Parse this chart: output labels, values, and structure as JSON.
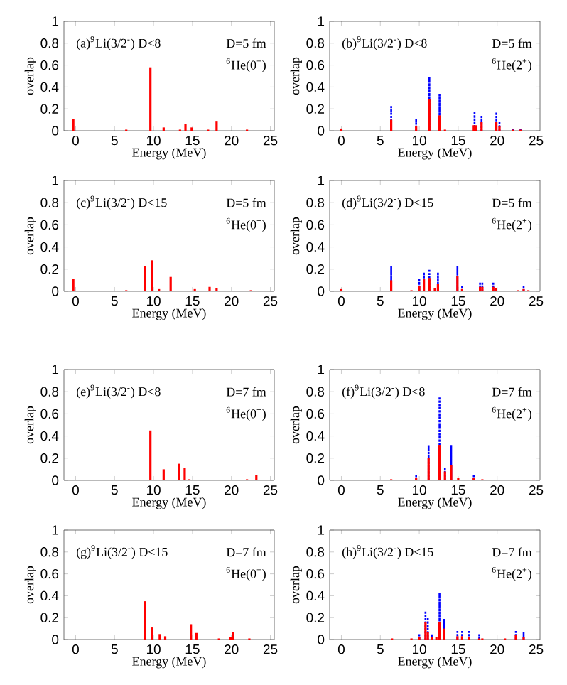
{
  "chart_data": [
    {
      "type": "bar",
      "xlabel": "Energy (MeV)",
      "ylabel": "overlap",
      "annotations": [
        "(a)$^{9}$Li(3/2$^{-}$) D<8",
        "D=5 fm",
        "$^{6}$He(0$^{+}$)"
      ],
      "xlim": [
        -1.5,
        25.5
      ],
      "ylim": [
        0,
        1
      ],
      "xticks": [
        0,
        5,
        10,
        15,
        20,
        25
      ],
      "yticks": [
        0,
        0.2,
        0.4,
        0.6,
        0.8,
        1
      ],
      "series": [
        {
          "color": "#ff0000",
          "x": [
            -0.3,
            6.5,
            9.6,
            11.3,
            13.4,
            14.1,
            14.9,
            17,
            18.1,
            22
          ],
          "values": [
            0.11,
            0.01,
            0.58,
            0.03,
            0.01,
            0.06,
            0.03,
            0.01,
            0.09,
            0.01
          ]
        }
      ]
    },
    {
      "type": "bar",
      "xlabel": "Energy (MeV)",
      "ylabel": "overlap",
      "annotations": [
        "(b)$^{9}$Li(3/2$^{-}$) D<8",
        "D=5 fm",
        "$^{6}$He(2$^{+}$)"
      ],
      "xlim": [
        -1.5,
        25.5
      ],
      "ylim": [
        0,
        1
      ],
      "xticks": [
        0,
        5,
        10,
        15,
        20,
        25
      ],
      "yticks": [
        0,
        0.2,
        0.4,
        0.6,
        0.8,
        1
      ],
      "series": [
        {
          "color": "#0000ff",
          "line_style": "dotted",
          "x": [
            6.4,
            9.6,
            11.3,
            12.6,
            17.1,
            18,
            19.9,
            20.3,
            22,
            23
          ],
          "values": [
            0.23,
            0.11,
            0.48,
            0.33,
            0.16,
            0.14,
            0.17,
            0.07,
            0.01,
            0.01
          ]
        },
        {
          "color": "#ff0000",
          "x": [
            0,
            6.4,
            9.6,
            11.3,
            12.6,
            13.3,
            17,
            17.3,
            18,
            19.9,
            20.3,
            22,
            23
          ],
          "values": [
            0.02,
            0.1,
            0.04,
            0.29,
            0.14,
            0.01,
            0.05,
            0.05,
            0.08,
            0.08,
            0.04,
            0.01,
            0.01
          ]
        }
      ]
    },
    {
      "type": "bar",
      "xlabel": "Energy (MeV)",
      "ylabel": "overlap",
      "annotations": [
        "(c)$^{9}$Li(3/2$^{-}$) D<15",
        "D=5 fm",
        "$^{6}$He(0$^{+}$)"
      ],
      "xlim": [
        -1.5,
        25.5
      ],
      "ylim": [
        0,
        1
      ],
      "xticks": [
        0,
        5,
        10,
        15,
        20,
        25
      ],
      "yticks": [
        0,
        0.2,
        0.4,
        0.6,
        0.8,
        1
      ],
      "series": [
        {
          "color": "#ff0000",
          "x": [
            -0.3,
            6.5,
            8.9,
            9.8,
            10.7,
            12.2,
            15.3,
            17.2,
            18.1,
            22.5
          ],
          "values": [
            0.11,
            0.01,
            0.23,
            0.28,
            0.02,
            0.13,
            0.02,
            0.04,
            0.03,
            0.01
          ]
        }
      ]
    },
    {
      "type": "bar",
      "xlabel": "Energy (MeV)",
      "ylabel": "overlap",
      "annotations": [
        "(d)$^{9}$Li(3/2$^{-}$) D<15",
        "D=5 fm",
        "$^{6}$He(2$^{+}$)"
      ],
      "xlim": [
        -1.5,
        25.5
      ],
      "ylim": [
        0,
        1
      ],
      "xticks": [
        0,
        5,
        10,
        15,
        20,
        25
      ],
      "yticks": [
        0,
        0.2,
        0.4,
        0.6,
        0.8,
        1
      ],
      "series": [
        {
          "color": "#0000ff",
          "line_style": "dotted",
          "x": [
            6.4,
            10,
            10.6,
            11.3,
            12.4,
            14.9,
            15.5,
            17.8,
            18.1,
            19.5,
            23.4
          ],
          "values": [
            0.22,
            0.1,
            0.16,
            0.2,
            0.16,
            0.22,
            0.04,
            0.07,
            0.07,
            0.07,
            0.04
          ]
        },
        {
          "color": "#ff0000",
          "x": [
            0,
            6.4,
            9,
            10,
            10.6,
            11.3,
            12,
            12.4,
            14.9,
            15.5,
            17.8,
            18.1,
            19.5,
            19.8,
            22.7,
            23.4,
            24
          ],
          "values": [
            0.02,
            0.1,
            0.01,
            0.05,
            0.11,
            0.12,
            0.03,
            0.07,
            0.14,
            0.02,
            0.04,
            0.04,
            0.04,
            0.03,
            0.01,
            0.02,
            0.01
          ]
        }
      ]
    },
    {
      "type": "bar",
      "xlabel": "Energy (MeV)",
      "ylabel": "overlap",
      "annotations": [
        "(e)$^{9}$Li(3/2$^{-}$) D<8",
        "D=7 fm",
        "$^{6}$He(0$^{+}$)"
      ],
      "xlim": [
        -1.5,
        25.5
      ],
      "ylim": [
        0,
        1
      ],
      "xticks": [
        0,
        5,
        10,
        15,
        20,
        25
      ],
      "yticks": [
        0,
        0.2,
        0.4,
        0.6,
        0.8,
        1
      ],
      "series": [
        {
          "color": "#ff0000",
          "x": [
            9.6,
            11.3,
            13.3,
            14,
            14.6,
            22,
            23.2
          ],
          "values": [
            0.45,
            0.1,
            0.15,
            0.11,
            0.01,
            0.01,
            0.05
          ]
        }
      ]
    },
    {
      "type": "bar",
      "xlabel": "Energy (MeV)",
      "ylabel": "overlap",
      "annotations": [
        "(f)$^{9}$Li(3/2$^{-}$) D<8",
        "D=7 fm",
        "$^{6}$He(2$^{+}$)"
      ],
      "xlim": [
        -1.5,
        25.5
      ],
      "ylim": [
        0,
        1
      ],
      "xticks": [
        0,
        5,
        10,
        15,
        20,
        25
      ],
      "yticks": [
        0,
        0.2,
        0.4,
        0.6,
        0.8,
        1
      ],
      "series": [
        {
          "color": "#0000ff",
          "line_style": "dotted",
          "x": [
            9.6,
            11.2,
            12.6,
            13.3,
            14.1,
            17
          ],
          "values": [
            0.04,
            0.32,
            0.74,
            0.1,
            0.31,
            0.04
          ]
        },
        {
          "color": "#ff0000",
          "x": [
            6.4,
            9.6,
            11.2,
            12.6,
            13.3,
            14.1,
            15,
            17,
            18.1
          ],
          "values": [
            0.01,
            0.02,
            0.2,
            0.32,
            0.08,
            0.14,
            0.02,
            0.02,
            0.01
          ]
        }
      ]
    },
    {
      "type": "bar",
      "xlabel": "Energy (MeV)",
      "ylabel": "overlap",
      "annotations": [
        "(g)$^{9}$Li(3/2$^{-}$) D<15",
        "D=7 fm",
        "$^{6}$He(0$^{+}$)"
      ],
      "xlim": [
        -1.5,
        25.5
      ],
      "ylim": [
        0,
        1
      ],
      "xticks": [
        0,
        5,
        10,
        15,
        20,
        25
      ],
      "yticks": [
        0,
        0.2,
        0.4,
        0.6,
        0.8,
        1
      ],
      "series": [
        {
          "color": "#ff0000",
          "x": [
            8.9,
            9.8,
            10.8,
            11.5,
            14.8,
            15.5,
            18.4,
            19.9,
            20.2,
            22.3
          ],
          "values": [
            0.35,
            0.11,
            0.05,
            0.03,
            0.14,
            0.06,
            0.01,
            0.02,
            0.07,
            0.01
          ]
        }
      ]
    },
    {
      "type": "bar",
      "xlabel": "Energy (MeV)",
      "ylabel": "overlap",
      "annotations": [
        "(h)$^{9}$Li(3/2$^{-}$) D<15",
        "D=7 fm",
        "$^{6}$He(2$^{+}$)"
      ],
      "xlim": [
        -1.5,
        25.5
      ],
      "ylim": [
        0,
        1
      ],
      "xticks": [
        0,
        5,
        10,
        15,
        20,
        25
      ],
      "yticks": [
        0,
        0.2,
        0.4,
        0.6,
        0.8,
        1
      ],
      "series": [
        {
          "color": "#0000ff",
          "line_style": "dotted",
          "x": [
            10,
            10.8,
            11.1,
            11.6,
            12.6,
            13.2,
            14.9,
            15.5,
            16.4,
            17.7,
            22.4,
            23.4
          ],
          "values": [
            0.04,
            0.26,
            0.2,
            0.05,
            0.42,
            0.18,
            0.07,
            0.07,
            0.07,
            0.04,
            0.07,
            0.06
          ]
        },
        {
          "color": "#ff0000",
          "x": [
            6.5,
            9,
            10,
            10.8,
            11.1,
            11.6,
            12.2,
            12.6,
            13.2,
            14.9,
            15.5,
            16.4,
            17.7,
            18.1,
            21,
            22.4,
            23.4
          ],
          "values": [
            0.01,
            0.01,
            0.02,
            0.16,
            0.07,
            0.02,
            0.02,
            0.16,
            0.1,
            0.03,
            0.03,
            0.02,
            0.01,
            0.01,
            0.01,
            0.04,
            0.02
          ]
        }
      ]
    }
  ]
}
